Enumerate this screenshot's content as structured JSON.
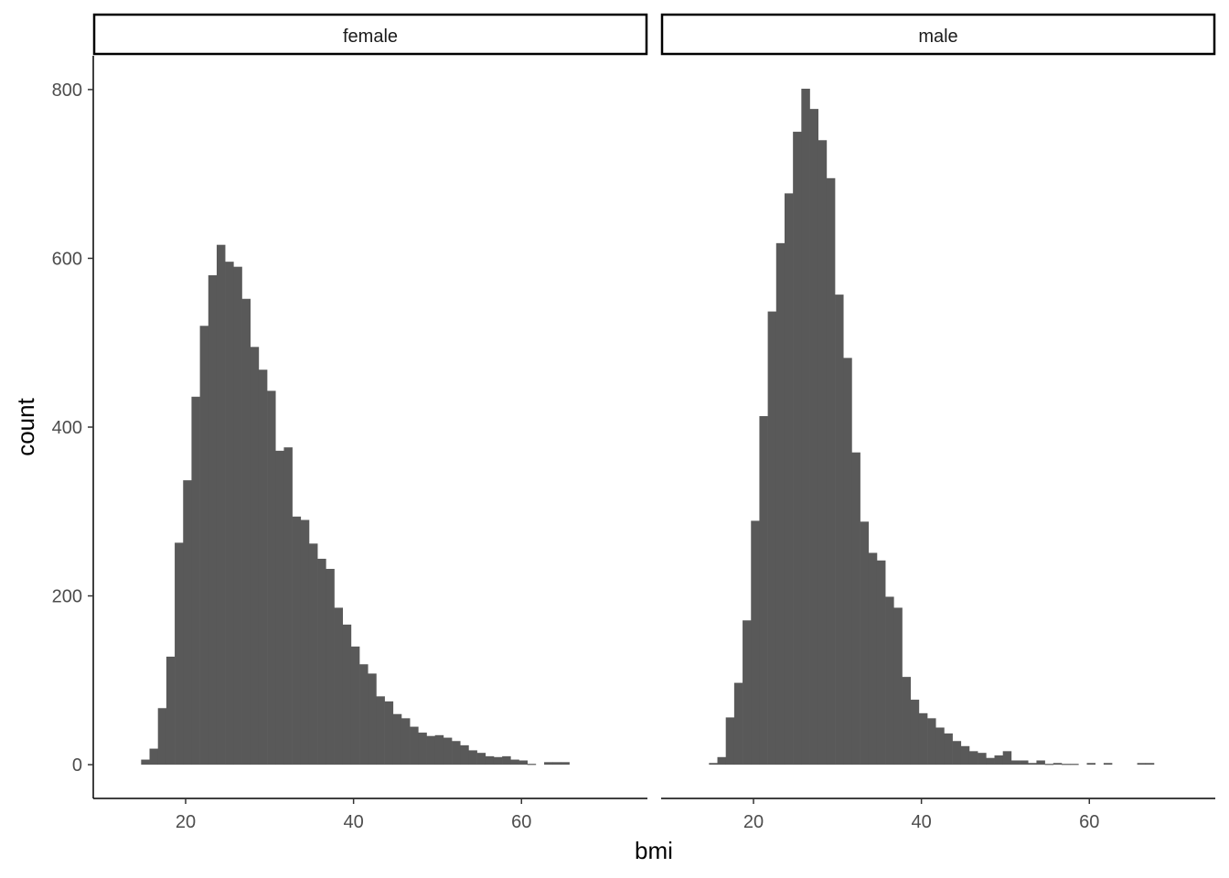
{
  "chart_data": {
    "type": "bar",
    "subtype": "faceted-histogram",
    "xlabel": "bmi",
    "ylabel": "count",
    "xlim": [
      9,
      75
    ],
    "ylim": [
      -40,
      840
    ],
    "x_ticks": [
      20,
      40,
      60
    ],
    "y_ticks": [
      0,
      200,
      400,
      600,
      800
    ],
    "bin_start": 14.7,
    "bin_width": 1.0,
    "bar_color": "#595959",
    "grid": false,
    "facets": [
      {
        "label": "female",
        "values": [
          6,
          19,
          67,
          128,
          263,
          337,
          436,
          520,
          580,
          616,
          596,
          590,
          552,
          495,
          468,
          443,
          372,
          376,
          294,
          290,
          262,
          244,
          232,
          186,
          166,
          140,
          119,
          108,
          81,
          75,
          60,
          55,
          45,
          38,
          34,
          35,
          32,
          28,
          23,
          17,
          14,
          10,
          9,
          10,
          6,
          5,
          1,
          0,
          3,
          3,
          3
        ]
      },
      {
        "label": "male",
        "values": [
          2,
          9,
          56,
          97,
          171,
          289,
          413,
          537,
          618,
          677,
          750,
          801,
          777,
          740,
          695,
          557,
          482,
          370,
          288,
          251,
          242,
          199,
          186,
          104,
          77,
          61,
          55,
          44,
          37,
          28,
          22,
          16,
          14,
          8,
          11,
          16,
          5,
          5,
          2,
          5,
          1,
          2,
          1,
          1,
          0,
          2,
          0,
          2,
          0,
          0,
          0,
          2,
          2
        ]
      }
    ]
  }
}
